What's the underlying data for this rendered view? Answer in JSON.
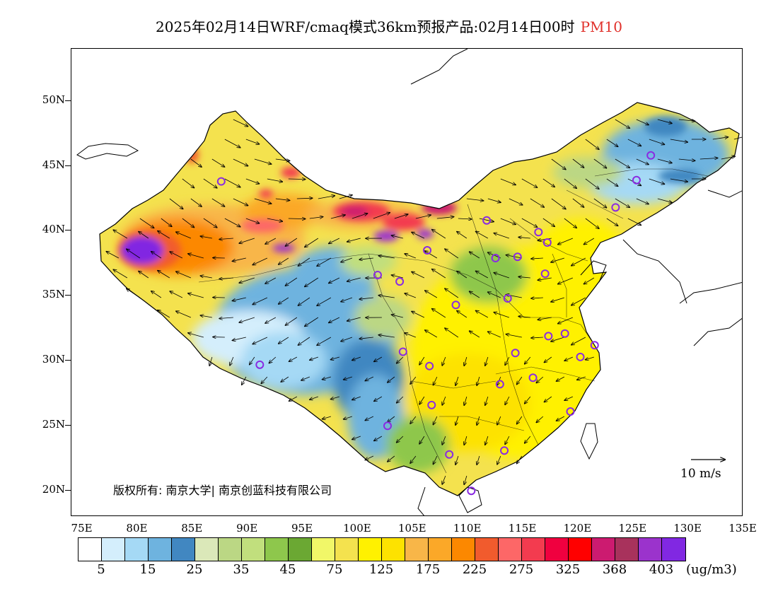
{
  "title": {
    "main": "2025年02月14日WRF/cmaq模式36km预报产品:02月14日00时",
    "variable": "PM10",
    "variable_color": "#e0302a"
  },
  "axes": {
    "lat_labels": [
      "50N",
      "45N",
      "40N",
      "35N",
      "30N",
      "25N",
      "20N"
    ],
    "lat_values": [
      50,
      45,
      40,
      35,
      30,
      25,
      20
    ],
    "lon_labels": [
      "75E",
      "80E",
      "85E",
      "90E",
      "95E",
      "100E",
      "105E",
      "110E",
      "115E",
      "120E",
      "125E",
      "130E",
      "135E"
    ],
    "lon_values": [
      75,
      80,
      85,
      90,
      95,
      100,
      105,
      110,
      115,
      120,
      125,
      130,
      135
    ]
  },
  "map_extent": {
    "lon_min": 74,
    "lon_max": 135,
    "lat_min": 18,
    "lat_max": 54
  },
  "copyright": "版权所有: 南京大学| 南京创蓝科技有限公司",
  "wind_reference": {
    "label": "10 m/s"
  },
  "colorbar": {
    "colors": [
      "#ffffff",
      "#d4eefc",
      "#a5d9f5",
      "#6eb3df",
      "#4187c1",
      "#dbe8b9",
      "#bbd784",
      "#c1df7d",
      "#8ec74c",
      "#6ba833",
      "#f1f768",
      "#f4e24e",
      "#fff100",
      "#fde200",
      "#f8b648",
      "#fba828",
      "#fc8800",
      "#f15b2d",
      "#fd6767",
      "#f33b4f",
      "#f0003f",
      "#ff0000",
      "#cc1b70",
      "#a8325c",
      "#9b33cc",
      "#8128e2"
    ],
    "labels": [
      "5",
      "15",
      "25",
      "35",
      "45",
      "75",
      "125",
      "175",
      "225",
      "275",
      "325",
      "368",
      "403"
    ],
    "unit": "(ug/m3)"
  },
  "cities": [
    {
      "lon": 87.6,
      "lat": 43.8
    },
    {
      "lon": 91.1,
      "lat": 29.7
    },
    {
      "lon": 101.8,
      "lat": 36.6
    },
    {
      "lon": 103.8,
      "lat": 36.1
    },
    {
      "lon": 106.3,
      "lat": 38.5
    },
    {
      "lon": 111.7,
      "lat": 40.8
    },
    {
      "lon": 112.5,
      "lat": 37.9
    },
    {
      "lon": 114.5,
      "lat": 38.0
    },
    {
      "lon": 116.4,
      "lat": 39.9
    },
    {
      "lon": 117.2,
      "lat": 39.1
    },
    {
      "lon": 117.0,
      "lat": 36.7
    },
    {
      "lon": 113.6,
      "lat": 34.8
    },
    {
      "lon": 108.9,
      "lat": 34.3
    },
    {
      "lon": 104.1,
      "lat": 30.7
    },
    {
      "lon": 106.5,
      "lat": 29.6
    },
    {
      "lon": 114.3,
      "lat": 30.6
    },
    {
      "lon": 117.3,
      "lat": 31.9
    },
    {
      "lon": 118.8,
      "lat": 32.1
    },
    {
      "lon": 120.2,
      "lat": 30.3
    },
    {
      "lon": 121.5,
      "lat": 31.2
    },
    {
      "lon": 112.9,
      "lat": 28.2
    },
    {
      "lon": 115.9,
      "lat": 28.7
    },
    {
      "lon": 119.3,
      "lat": 26.1
    },
    {
      "lon": 106.7,
      "lat": 26.6
    },
    {
      "lon": 102.7,
      "lat": 25.0
    },
    {
      "lon": 108.3,
      "lat": 22.8
    },
    {
      "lon": 113.3,
      "lat": 23.1
    },
    {
      "lon": 110.3,
      "lat": 20.0
    },
    {
      "lon": 123.4,
      "lat": 41.8
    },
    {
      "lon": 125.3,
      "lat": 43.9
    },
    {
      "lon": 126.6,
      "lat": 45.8
    }
  ]
}
